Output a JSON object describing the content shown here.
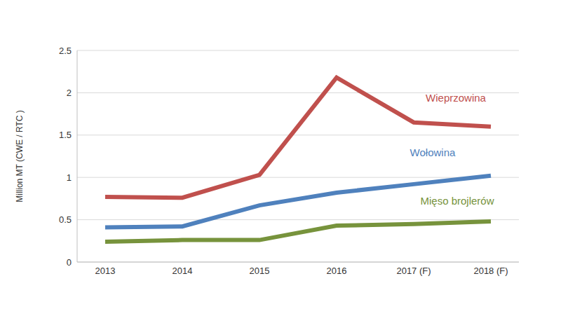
{
  "chart_data": {
    "type": "line",
    "categories": [
      "2013",
      "2014",
      "2015",
      "2016",
      "2017 (F)",
      "2018 (F)"
    ],
    "series": [
      {
        "name": "Wieprzowina",
        "color": "#c0504d",
        "values": [
          0.77,
          0.76,
          1.03,
          2.18,
          1.65,
          1.6
        ]
      },
      {
        "name": "Wołowina",
        "color": "#4f81bd",
        "values": [
          0.41,
          0.42,
          0.67,
          0.82,
          0.92,
          1.02
        ]
      },
      {
        "name": "Mięso brojlerów",
        "color": "#77933c",
        "values": [
          0.24,
          0.26,
          0.26,
          0.43,
          0.45,
          0.48
        ]
      }
    ],
    "ylabel": "Million MT (CWE / RTC )",
    "ylim": [
      0,
      2.5
    ],
    "yticks": [
      0,
      0.5,
      1,
      1.5,
      2,
      2.5
    ],
    "grid": true
  }
}
